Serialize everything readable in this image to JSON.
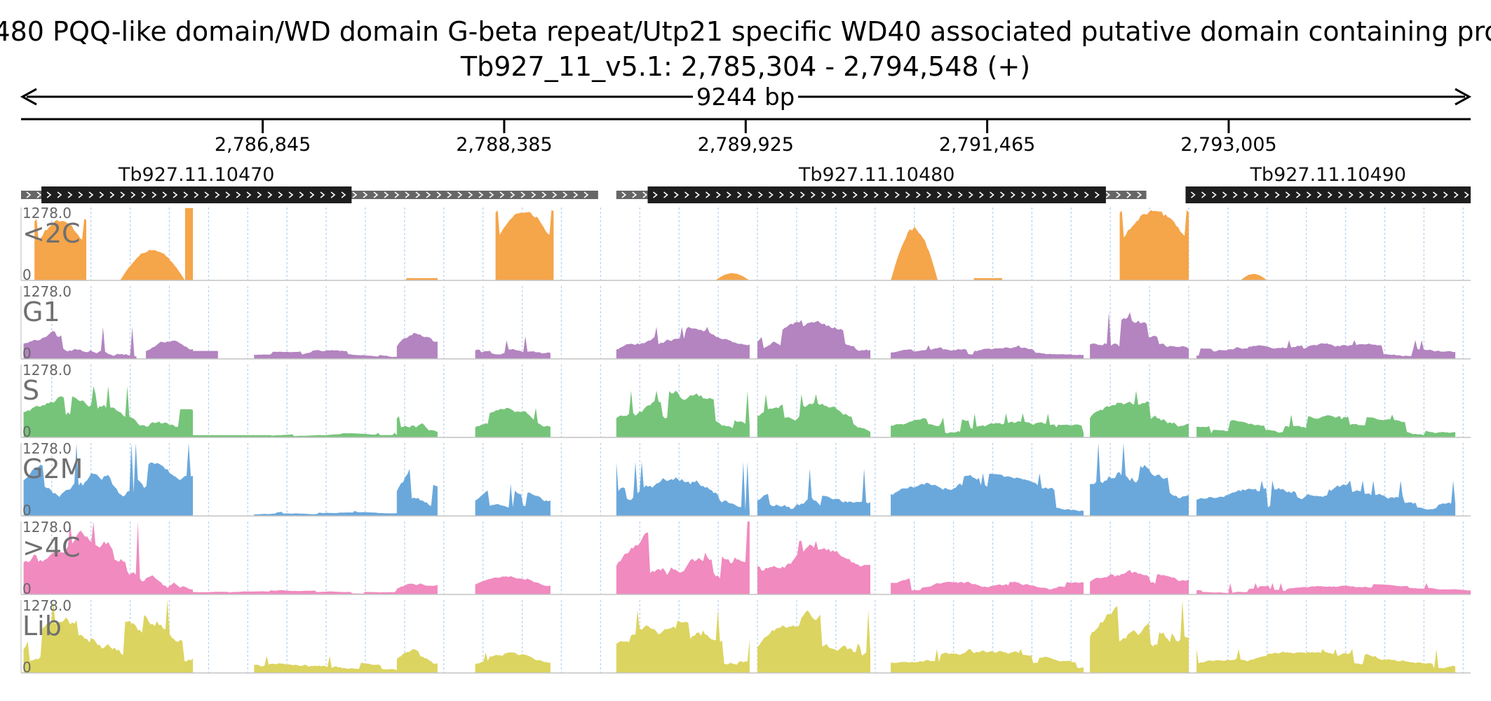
{
  "header": {
    "title_line1": "480  PQQ-like domain/WD domain  G-beta repeat/Utp21 specific WD40 associated putative domain containing pro",
    "title_line2": "Tb927_11_v5.1: 2,785,304 - 2,794,548 (+)",
    "span_label": "9244 bp"
  },
  "chart_data": {
    "type": "area",
    "title": "Tb927_11_v5.1: 2,785,304 - 2,794,548 (+)",
    "chromosome": "Tb927_11_v5.1",
    "region_start": 2785304,
    "region_end": 2794548,
    "span_bp": 9244,
    "ticks": [
      {
        "pos": 2786845,
        "label": "2,786,845"
      },
      {
        "pos": 2788385,
        "label": "2,788,385"
      },
      {
        "pos": 2789925,
        "label": "2,789,925"
      },
      {
        "pos": 2791465,
        "label": "2,791,465"
      },
      {
        "pos": 2793005,
        "label": "2,793,005"
      }
    ],
    "genes": [
      {
        "name": "Tb927.11.10470",
        "utr_start": 2785304,
        "cds_start": 2785434,
        "cds_end": 2787412,
        "utr_end": 2788984
      },
      {
        "name": "Tb927.11.10480",
        "utr_start": 2789100,
        "cds_start": 2789300,
        "cds_end": 2792222,
        "utr_end": 2792480
      },
      {
        "name": "Tb927.11.10490",
        "utr_start": 2792730,
        "cds_start": 2792730,
        "cds_end": 2794548,
        "utr_end": 2794548
      }
    ],
    "tracks": [
      {
        "name": "<2C",
        "color": "#f5a54a",
        "max": "1278.0",
        "min": "0",
        "ymax": 1278,
        "peaks": [
          {
            "start": 2785390,
            "end": 2785720,
            "height": 1080,
            "shape": "bowl"
          },
          {
            "start": 2785935,
            "end": 2786350,
            "height": 560,
            "shape": "hump"
          },
          {
            "start": 2786350,
            "end": 2786400,
            "height": 1270,
            "shape": "flat"
          },
          {
            "start": 2787760,
            "end": 2787960,
            "height": 40,
            "shape": "flat"
          },
          {
            "start": 2788330,
            "end": 2788700,
            "height": 1240,
            "shape": "bowl"
          },
          {
            "start": 2789730,
            "end": 2789950,
            "height": 130,
            "shape": "hump"
          },
          {
            "start": 2790850,
            "end": 2791150,
            "height": 950,
            "shape": "hump"
          },
          {
            "start": 2791380,
            "end": 2791560,
            "height": 40,
            "shape": "flat"
          },
          {
            "start": 2792310,
            "end": 2792750,
            "height": 1240,
            "shape": "bowl"
          },
          {
            "start": 2793080,
            "end": 2793250,
            "height": 120,
            "shape": "hump"
          }
        ]
      },
      {
        "name": "G1",
        "color": "#b384c0",
        "max": "1278.0",
        "min": "0",
        "ymax": 1278,
        "peaks": [
          {
            "start": 2785320,
            "end": 2786040,
            "height": 560,
            "shape": "jagged"
          },
          {
            "start": 2786100,
            "end": 2786400,
            "height": 430,
            "shape": "jagged"
          },
          {
            "start": 2786400,
            "end": 2786560,
            "height": 140,
            "shape": "flat"
          },
          {
            "start": 2786790,
            "end": 2787700,
            "height": 190,
            "shape": "jagged"
          },
          {
            "start": 2787700,
            "end": 2787960,
            "height": 700,
            "shape": "jagged"
          },
          {
            "start": 2788200,
            "end": 2788680,
            "height": 400,
            "shape": "jagged"
          },
          {
            "start": 2789100,
            "end": 2789950,
            "height": 560,
            "shape": "jagged"
          },
          {
            "start": 2790000,
            "end": 2790720,
            "height": 720,
            "shape": "jagged"
          },
          {
            "start": 2790850,
            "end": 2792080,
            "height": 240,
            "shape": "jagged"
          },
          {
            "start": 2792120,
            "end": 2792750,
            "height": 820,
            "shape": "jagged"
          },
          {
            "start": 2792800,
            "end": 2794450,
            "height": 330,
            "shape": "jagged"
          }
        ]
      },
      {
        "name": "S",
        "color": "#76c47a",
        "max": "1278.0",
        "min": "0",
        "ymax": 1278,
        "peaks": [
          {
            "start": 2785320,
            "end": 2786400,
            "height": 900,
            "shape": "jagged"
          },
          {
            "start": 2786400,
            "end": 2786900,
            "height": 40,
            "shape": "flat"
          },
          {
            "start": 2786900,
            "end": 2787700,
            "height": 80,
            "shape": "jagged"
          },
          {
            "start": 2787700,
            "end": 2787960,
            "height": 660,
            "shape": "jagged"
          },
          {
            "start": 2788200,
            "end": 2788680,
            "height": 520,
            "shape": "jagged"
          },
          {
            "start": 2789100,
            "end": 2789950,
            "height": 820,
            "shape": "jagged"
          },
          {
            "start": 2790000,
            "end": 2790720,
            "height": 760,
            "shape": "jagged"
          },
          {
            "start": 2790850,
            "end": 2792080,
            "height": 420,
            "shape": "jagged"
          },
          {
            "start": 2792120,
            "end": 2792750,
            "height": 820,
            "shape": "jagged"
          },
          {
            "start": 2792800,
            "end": 2794450,
            "height": 400,
            "shape": "jagged"
          }
        ]
      },
      {
        "name": "G2M",
        "color": "#6aa8dc",
        "max": "1278.0",
        "min": "0",
        "ymax": 1278,
        "peaks": [
          {
            "start": 2785320,
            "end": 2786400,
            "height": 1278,
            "shape": "jagged"
          },
          {
            "start": 2786790,
            "end": 2787700,
            "height": 90,
            "shape": "jagged"
          },
          {
            "start": 2787700,
            "end": 2787960,
            "height": 960,
            "shape": "jagged"
          },
          {
            "start": 2788200,
            "end": 2788680,
            "height": 560,
            "shape": "jagged"
          },
          {
            "start": 2789100,
            "end": 2789950,
            "height": 950,
            "shape": "jagged"
          },
          {
            "start": 2790000,
            "end": 2790720,
            "height": 830,
            "shape": "jagged"
          },
          {
            "start": 2790850,
            "end": 2792080,
            "height": 750,
            "shape": "jagged"
          },
          {
            "start": 2792120,
            "end": 2792750,
            "height": 1278,
            "shape": "jagged"
          },
          {
            "start": 2792800,
            "end": 2794450,
            "height": 620,
            "shape": "jagged"
          }
        ]
      },
      {
        "name": ">4C",
        "color": "#f08abf",
        "max": "1278.0",
        "min": "0",
        "ymax": 1278,
        "peaks": [
          {
            "start": 2785320,
            "end": 2786400,
            "height": 1278,
            "shape": "jagged"
          },
          {
            "start": 2786400,
            "end": 2787700,
            "height": 80,
            "shape": "jagged"
          },
          {
            "start": 2787700,
            "end": 2787960,
            "height": 500,
            "shape": "jagged"
          },
          {
            "start": 2788200,
            "end": 2788680,
            "height": 330,
            "shape": "jagged"
          },
          {
            "start": 2789100,
            "end": 2789950,
            "height": 1278,
            "shape": "jagged"
          },
          {
            "start": 2790000,
            "end": 2790720,
            "height": 940,
            "shape": "jagged"
          },
          {
            "start": 2790850,
            "end": 2792080,
            "height": 400,
            "shape": "jagged"
          },
          {
            "start": 2792120,
            "end": 2792750,
            "height": 550,
            "shape": "jagged"
          },
          {
            "start": 2792800,
            "end": 2794548,
            "height": 200,
            "shape": "jagged"
          }
        ]
      },
      {
        "name": "Lib",
        "color": "#dcd460",
        "max": "1278.0",
        "min": "0",
        "ymax": 1278,
        "peaks": [
          {
            "start": 2785320,
            "end": 2786400,
            "height": 1278,
            "shape": "jagged"
          },
          {
            "start": 2786790,
            "end": 2787700,
            "height": 300,
            "shape": "jagged"
          },
          {
            "start": 2787700,
            "end": 2787960,
            "height": 440,
            "shape": "jagged"
          },
          {
            "start": 2788200,
            "end": 2788680,
            "height": 360,
            "shape": "jagged"
          },
          {
            "start": 2789100,
            "end": 2789950,
            "height": 1100,
            "shape": "jagged"
          },
          {
            "start": 2790000,
            "end": 2790720,
            "height": 1100,
            "shape": "jagged"
          },
          {
            "start": 2790850,
            "end": 2792080,
            "height": 420,
            "shape": "jagged"
          },
          {
            "start": 2792120,
            "end": 2792750,
            "height": 1278,
            "shape": "jagged"
          },
          {
            "start": 2792800,
            "end": 2794450,
            "height": 420,
            "shape": "jagged"
          }
        ]
      }
    ]
  }
}
